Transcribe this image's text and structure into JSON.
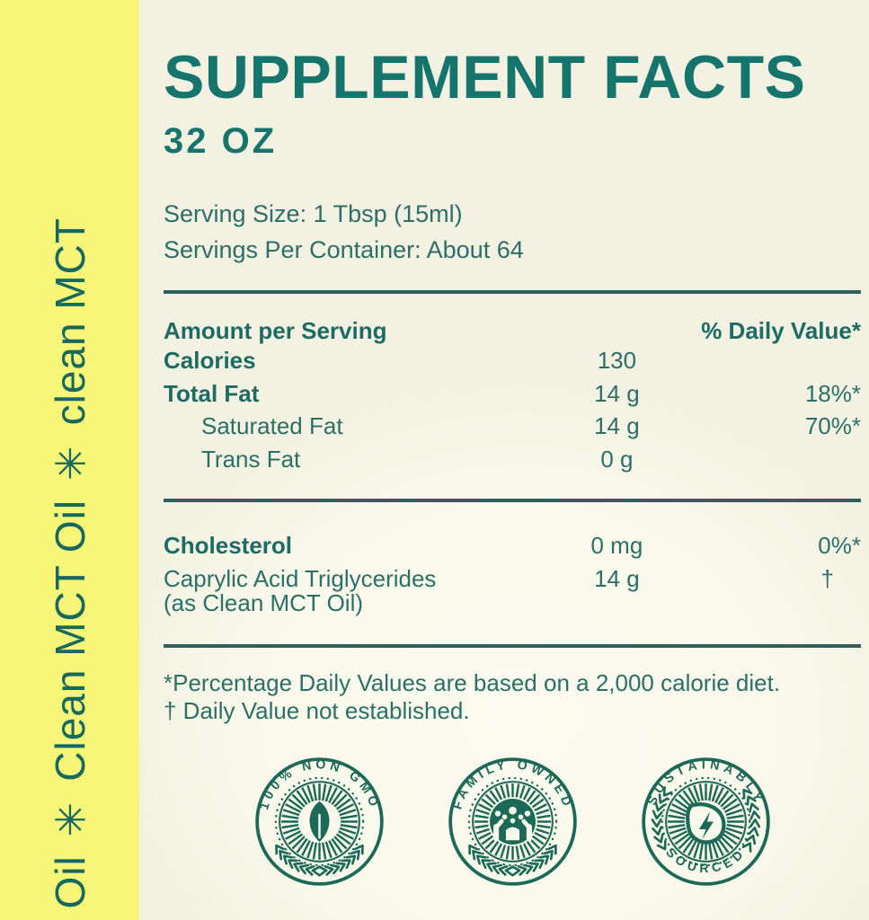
{
  "sidebar": {
    "vertical_text": "Oil ✳ Clean MCT Oil ✳ clean MCT"
  },
  "header": {
    "title": "SUPPLEMENT FACTS",
    "size": "32 OZ"
  },
  "serving": {
    "serving_size": "Serving Size: 1 Tbsp (15ml)",
    "servings_per_container": "Servings Per Container: About 64"
  },
  "table": {
    "amount_header": "Amount per Serving",
    "dv_header": "% Daily Value*",
    "rows": [
      {
        "label": "Calories",
        "amount": "130",
        "dv": ""
      },
      {
        "label": "Total Fat",
        "amount": "14 g",
        "dv": "18%*"
      },
      {
        "label": "Saturated Fat",
        "amount": "14 g",
        "dv": "70%*"
      },
      {
        "label": "Trans Fat",
        "amount": "0 g",
        "dv": ""
      }
    ],
    "rows2": [
      {
        "label": "Cholesterol",
        "amount": "0 mg",
        "dv": "0%*"
      },
      {
        "label": "Caprylic Acid Triglycerides",
        "sublabel": "(as Clean MCT Oil)",
        "amount": "14 g",
        "dv": "†"
      }
    ]
  },
  "footnotes": [
    "*Percentage Daily Values are based on a 2,000 calorie diet.",
    "† Daily Value not established."
  ],
  "badges": [
    {
      "name": "non-gmo",
      "top_text": "100% NON GMO",
      "bottom_text": "",
      "icon": "leaf-icon"
    },
    {
      "name": "family-owned",
      "top_text": "FAMILY OWNED",
      "bottom_text": "",
      "icon": "family-icon"
    },
    {
      "name": "sustainably-sourced",
      "top_text": "SUSTAINABLY",
      "bottom_text": "SOURCED",
      "icon": "lightning-icon"
    }
  ],
  "colors": {
    "sidebar_yellow": "#f7f678",
    "background_cream": "#f3f2e2",
    "highlight_cream": "#fcfbef",
    "teal_title": "#15756c",
    "teal_text": "#2b6f67",
    "badge_teal": "#1d6957",
    "rule_teal": "#315f60"
  }
}
